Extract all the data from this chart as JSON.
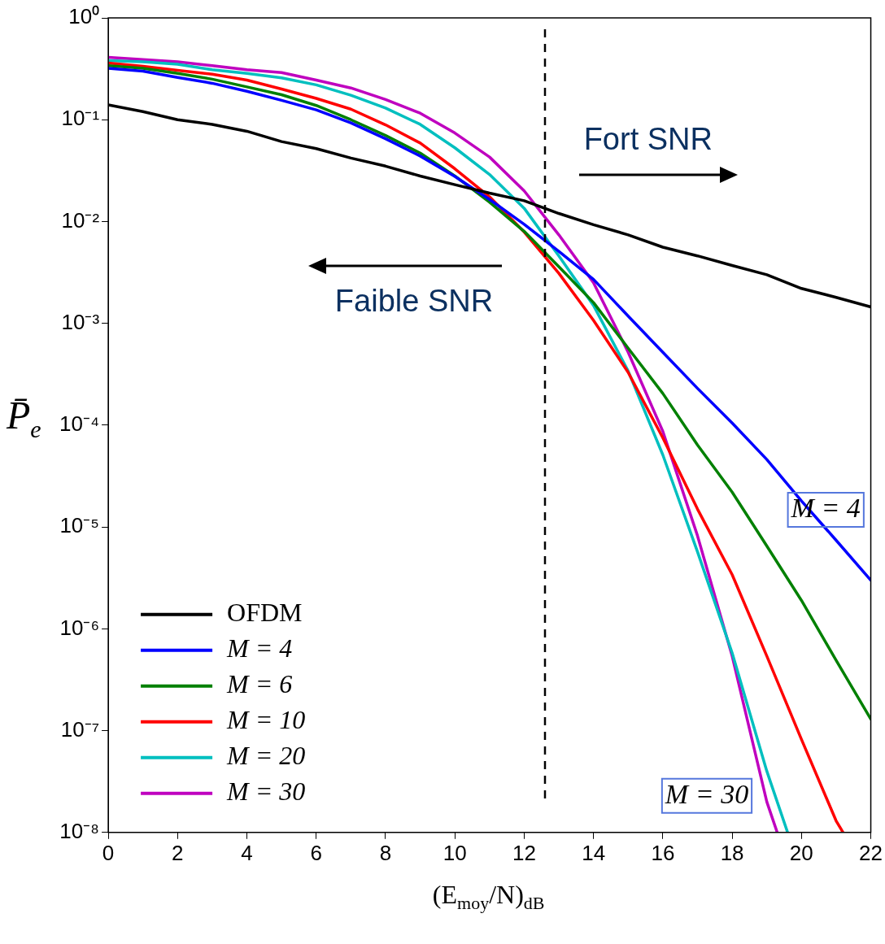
{
  "chart_data": {
    "type": "line",
    "xlabel": "(E$_{moy}$/N)$_{dB}$",
    "ylabel": "P̄$_{e}$",
    "log": "y",
    "x": [
      0,
      1,
      2,
      3,
      4,
      5,
      6,
      7,
      8,
      9,
      10,
      11,
      12,
      13,
      14,
      15,
      16,
      17,
      18,
      19,
      20,
      21,
      22
    ],
    "series": [
      {
        "name": "OFDM",
        "color": "#000000",
        "values": [
          0.14,
          0.12,
          0.1,
          0.09,
          0.077,
          0.061,
          0.052,
          0.042,
          0.035,
          0.028,
          0.023,
          0.019,
          0.016,
          0.012,
          0.0093,
          0.0074,
          0.0056,
          0.0046,
          0.0037,
          0.003,
          0.0022,
          0.0018,
          0.00145
        ]
      },
      {
        "name": "M = 4",
        "color": "#0000ff",
        "values": [
          0.32,
          0.3,
          0.26,
          0.228,
          0.19,
          0.155,
          0.125,
          0.093,
          0.065,
          0.044,
          0.0277,
          0.0165,
          0.0094,
          0.0051,
          0.0027,
          0.00118,
          0.00052,
          0.00023,
          0.000105,
          4.6e-05,
          1.8e-05,
          7.4e-06,
          3e-06
        ]
      },
      {
        "name": "M = 6",
        "color": "#008000",
        "values": [
          0.34,
          0.32,
          0.285,
          0.25,
          0.21,
          0.176,
          0.138,
          0.1,
          0.07,
          0.047,
          0.028,
          0.0155,
          0.008,
          0.0036,
          0.0016,
          0.00057,
          0.000205,
          6.4e-05,
          2.2e-05,
          6.5e-06,
          1.9e-06,
          4.9e-07,
          1.3e-07
        ]
      },
      {
        "name": "M = 10",
        "color": "#ff0000",
        "x": [
          0,
          1,
          2,
          3,
          4,
          5,
          6,
          7,
          8,
          9,
          10,
          11,
          12,
          13,
          14,
          15,
          16,
          17,
          18,
          19,
          20,
          21,
          21.2
        ],
        "values": [
          0.36,
          0.335,
          0.305,
          0.28,
          0.245,
          0.2,
          0.162,
          0.127,
          0.089,
          0.059,
          0.033,
          0.0175,
          0.0079,
          0.0031,
          0.00107,
          0.00033,
          7.5e-05,
          1.5e-05,
          3.4e-06,
          5.4e-07,
          8.2e-08,
          1.3e-08,
          1e-08
        ]
      },
      {
        "name": "M = 20",
        "color": "#00bfbf",
        "x": [
          0,
          1,
          2,
          3,
          4,
          5,
          6,
          7,
          8,
          9,
          10,
          11,
          12,
          13,
          14,
          15,
          16,
          17,
          18,
          19,
          19.6
        ],
        "values": [
          0.38,
          0.37,
          0.35,
          0.31,
          0.285,
          0.258,
          0.22,
          0.174,
          0.13,
          0.09,
          0.053,
          0.029,
          0.0135,
          0.0046,
          0.0015,
          0.00034,
          5.1e-05,
          5.7e-06,
          5.8e-07,
          4e-08,
          1e-08
        ]
      },
      {
        "name": "M = 30",
        "color": "#bf00bf",
        "x": [
          0,
          1,
          2,
          3,
          4,
          5,
          6,
          7,
          8,
          9,
          10,
          11,
          12,
          13,
          14,
          15,
          16,
          17,
          18,
          19,
          19.3
        ],
        "values": [
          0.41,
          0.39,
          0.37,
          0.34,
          0.31,
          0.29,
          0.245,
          0.205,
          0.158,
          0.116,
          0.074,
          0.043,
          0.02,
          0.0074,
          0.0025,
          0.00052,
          8.7e-05,
          8.2e-06,
          5.4e-07,
          2e-08,
          1e-08
        ]
      }
    ],
    "xlim": [
      0,
      22
    ],
    "xticks": [
      0,
      2,
      4,
      6,
      8,
      10,
      12,
      14,
      16,
      18,
      20,
      22
    ],
    "ylim": [
      1e-08,
      1
    ],
    "yticks": [
      {
        "value": 1e-08,
        "label": "10⁻⁸"
      },
      {
        "value": 1e-07,
        "label": "10⁻⁷"
      },
      {
        "value": 1e-06,
        "label": "10⁻⁶"
      },
      {
        "value": 1e-05,
        "label": "10⁻⁵"
      },
      {
        "value": 0.0001,
        "label": "10⁻⁴"
      },
      {
        "value": 0.001,
        "label": "10⁻³"
      },
      {
        "value": 0.01,
        "label": "10⁻²"
      },
      {
        "value": 0.1,
        "label": "10⁻¹"
      },
      {
        "value": 1,
        "label": "10⁰"
      }
    ],
    "ref_lines": [
      {
        "axis": "x",
        "value": 12.6,
        "color": "#000000",
        "line_style": "dashed"
      }
    ],
    "annotations": [
      "Fort SNR",
      "Faible SNR",
      "M = 4",
      "M = 30"
    ],
    "grid": false,
    "legend": "bottom left",
    "marker": "none",
    "line_style": "solid"
  }
}
